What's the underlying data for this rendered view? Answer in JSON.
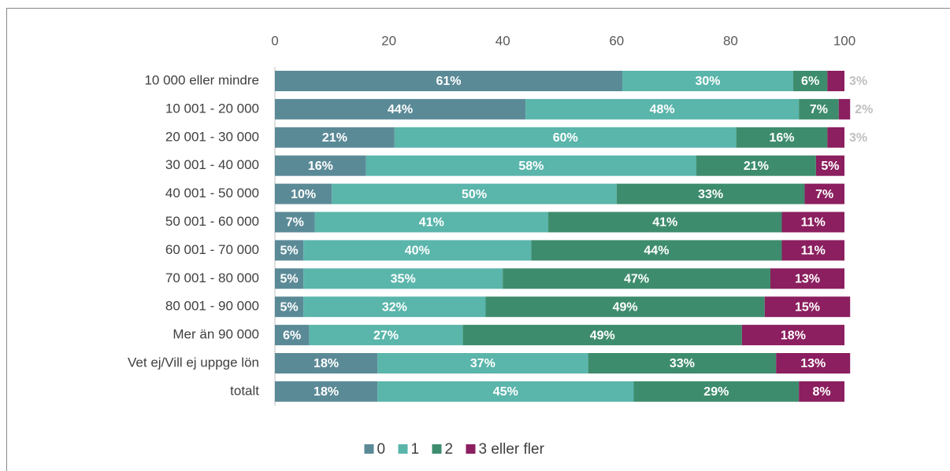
{
  "chart_data": {
    "type": "stacked-barh",
    "categories": [
      "10 000 eller mindre",
      "10 001 - 20 000",
      "20 001 - 30 000",
      "30 001 - 40 000",
      "40 001 - 50 000",
      "50 001 - 60 000",
      "60 001 - 70 000",
      "70 001 - 80 000",
      "80 001 - 90 000",
      "Mer än 90 000",
      "Vet ej/Vill ej uppge lön",
      "totalt"
    ],
    "series": [
      {
        "name": "0",
        "color": "#5b8a97",
        "values": [
          61,
          44,
          21,
          16,
          10,
          7,
          5,
          5,
          5,
          6,
          18,
          18
        ],
        "value_labels": [
          "61%",
          "44%",
          "21%",
          "16%",
          "10%",
          "7%",
          "5%",
          "5%",
          "5%",
          "6%",
          "18%",
          "18%"
        ]
      },
      {
        "name": "1",
        "color": "#5ab5ab",
        "values": [
          30,
          48,
          60,
          58,
          50,
          41,
          40,
          35,
          32,
          27,
          37,
          45
        ],
        "value_labels": [
          "30%",
          "48%",
          "60%",
          "58%",
          "50%",
          "41%",
          "40%",
          "35%",
          "32%",
          "27%",
          "37%",
          "45%"
        ]
      },
      {
        "name": "2",
        "color": "#3e8c6e",
        "values": [
          6,
          7,
          16,
          21,
          33,
          41,
          44,
          47,
          49,
          49,
          33,
          29
        ],
        "value_labels": [
          "6%",
          "7%",
          "16%",
          "21%",
          "33%",
          "41%",
          "44%",
          "47%",
          "49%",
          "49%",
          "33%",
          "29%"
        ]
      },
      {
        "name": "3 eller fler",
        "color": "#8b1f5f",
        "values": [
          3,
          2,
          3,
          5,
          7,
          11,
          11,
          13,
          15,
          18,
          13,
          8
        ],
        "value_labels": [
          "3%",
          "2%",
          "3%",
          "5%",
          "7%",
          "11%",
          "11%",
          "13%",
          "15%",
          "18%",
          "13%",
          "8%"
        ]
      }
    ],
    "xlim": [
      0,
      100
    ],
    "xticks": [
      0,
      20,
      40,
      60,
      80,
      100
    ]
  }
}
